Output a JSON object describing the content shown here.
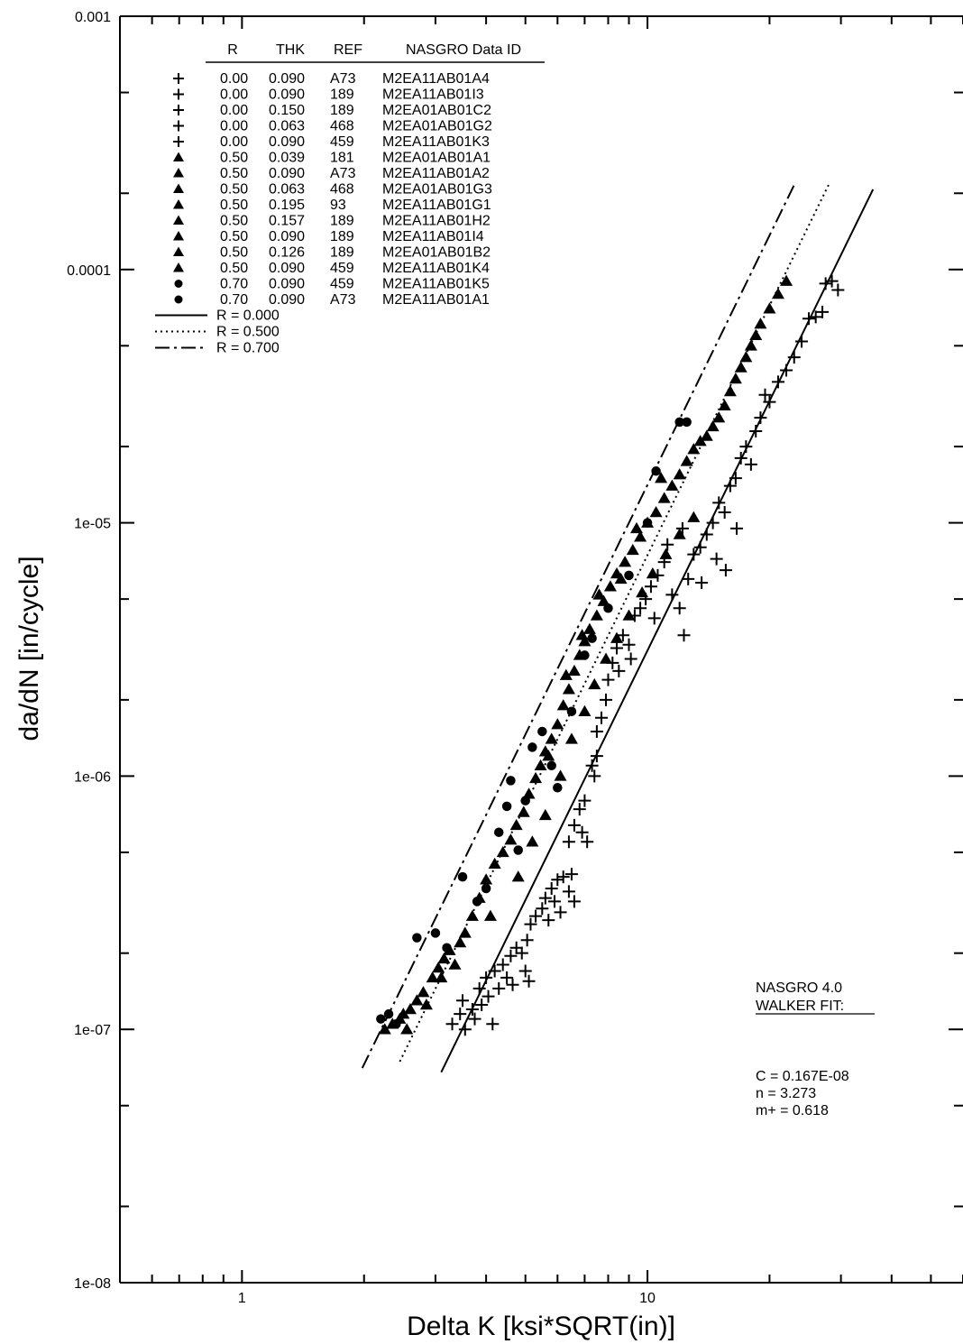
{
  "chart_data": {
    "type": "scatter",
    "xscale": "log",
    "yscale": "log",
    "xlim": [
      0.5,
      60
    ],
    "ylim": [
      1e-08,
      0.001
    ],
    "xlabel": "Delta K [ksi*SQRT(in)]",
    "ylabel": "da/dN [in/cycle]",
    "x_tick_labels": [
      {
        "value": 1,
        "label": "1"
      },
      {
        "value": 10,
        "label": "10"
      }
    ],
    "y_tick_labels": [
      {
        "value": 1e-08,
        "label": "1e-08"
      },
      {
        "value": 1e-07,
        "label": "1e-07"
      },
      {
        "value": 1e-06,
        "label": "1e-06"
      },
      {
        "value": 1e-05,
        "label": "1e-05"
      },
      {
        "value": 0.0001,
        "label": "0.0001"
      },
      {
        "value": 0.001,
        "label": "0.001"
      }
    ],
    "legend": {
      "position": "top-left",
      "headers": [
        "R",
        "THK",
        "REF",
        "NASGRO Data ID"
      ],
      "rows": [
        {
          "marker": "plus",
          "R": "0.00",
          "THK": "0.090",
          "REF": "A73",
          "id": "M2EA11AB01A4"
        },
        {
          "marker": "plus",
          "R": "0.00",
          "THK": "0.090",
          "REF": "189",
          "id": "M2EA11AB01I3"
        },
        {
          "marker": "plus",
          "R": "0.00",
          "THK": "0.150",
          "REF": "189",
          "id": "M2EA01AB01C2"
        },
        {
          "marker": "plus",
          "R": "0.00",
          "THK": "0.063",
          "REF": "468",
          "id": "M2EA01AB01G2"
        },
        {
          "marker": "plus",
          "R": "0.00",
          "THK": "0.090",
          "REF": "459",
          "id": "M2EA11AB01K3"
        },
        {
          "marker": "triangle",
          "R": "0.50",
          "THK": "0.039",
          "REF": "181",
          "id": "M2EA01AB01A1"
        },
        {
          "marker": "triangle",
          "R": "0.50",
          "THK": "0.090",
          "REF": "A73",
          "id": "M2EA11AB01A2"
        },
        {
          "marker": "triangle",
          "R": "0.50",
          "THK": "0.063",
          "REF": "468",
          "id": "M2EA01AB01G3"
        },
        {
          "marker": "triangle",
          "R": "0.50",
          "THK": "0.195",
          "REF": "93",
          "id": "M2EA11AB01G1"
        },
        {
          "marker": "triangle",
          "R": "0.50",
          "THK": "0.157",
          "REF": "189",
          "id": "M2EA11AB01H2"
        },
        {
          "marker": "triangle",
          "R": "0.50",
          "THK": "0.090",
          "REF": "189",
          "id": "M2EA11AB01I4"
        },
        {
          "marker": "triangle",
          "R": "0.50",
          "THK": "0.126",
          "REF": "189",
          "id": "M2EA01AB01B2"
        },
        {
          "marker": "triangle",
          "R": "0.50",
          "THK": "0.090",
          "REF": "459",
          "id": "M2EA11AB01K4"
        },
        {
          "marker": "circle",
          "R": "0.70",
          "THK": "0.090",
          "REF": "459",
          "id": "M2EA11AB01K5"
        },
        {
          "marker": "circle",
          "R": "0.70",
          "THK": "0.090",
          "REF": "A73",
          "id": "M2EA11AB01A1"
        }
      ],
      "fit_lines": [
        {
          "style": "solid",
          "label": "R =  0.000"
        },
        {
          "style": "dotted",
          "label": "R =  0.500"
        },
        {
          "style": "dashdot",
          "label": "R =  0.700"
        }
      ]
    },
    "annotation": {
      "title_lines": [
        "NASGRO 4.0",
        "WALKER FIT:"
      ],
      "params": [
        "C = 0.167E-08",
        "n = 3.273",
        "m+ = 0.618"
      ]
    },
    "fit_curves": [
      {
        "R": 0.0,
        "style": "solid",
        "x_range": [
          3.1,
          36
        ]
      },
      {
        "R": 0.5,
        "style": "dotted",
        "x_range": [
          2.45,
          28
        ]
      },
      {
        "R": 0.7,
        "style": "dashdot",
        "x_range": [
          1.98,
          23
        ]
      }
    ],
    "series": [
      {
        "R": "0.00",
        "marker": "plus",
        "points": [
          [
            3.3,
            1.05e-07
          ],
          [
            3.45,
            1.15e-07
          ],
          [
            3.5,
            1.3e-07
          ],
          [
            3.55,
            1e-07
          ],
          [
            3.7,
            1.2e-07
          ],
          [
            3.75,
            1.1e-07
          ],
          [
            3.85,
            1.45e-07
          ],
          [
            3.9,
            1.25e-07
          ],
          [
            4.0,
            1.6e-07
          ],
          [
            4.05,
            1.35e-07
          ],
          [
            4.15,
            1.05e-07
          ],
          [
            4.2,
            1.7e-07
          ],
          [
            4.3,
            1.45e-07
          ],
          [
            4.4,
            1.8e-07
          ],
          [
            4.5,
            1.6e-07
          ],
          [
            4.6,
            1.95e-07
          ],
          [
            4.65,
            1.5e-07
          ],
          [
            4.75,
            2.1e-07
          ],
          [
            4.9,
            2e-07
          ],
          [
            5.0,
            1.7e-07
          ],
          [
            5.1,
            1.55e-07
          ],
          [
            5.05,
            2.25e-07
          ],
          [
            5.15,
            2.6e-07
          ],
          [
            5.3,
            2.8e-07
          ],
          [
            5.5,
            3e-07
          ],
          [
            5.6,
            3.3e-07
          ],
          [
            5.8,
            3.6e-07
          ],
          [
            5.9,
            3.2e-07
          ],
          [
            6.0,
            3.9e-07
          ],
          [
            6.2,
            4e-07
          ],
          [
            6.4,
            3.5e-07
          ],
          [
            6.5,
            4.1e-07
          ],
          [
            6.6,
            3.2e-07
          ],
          [
            6.1,
            2.9e-07
          ],
          [
            5.7,
            2.7e-07
          ],
          [
            6.4,
            5.5e-07
          ],
          [
            6.6,
            6.4e-07
          ],
          [
            6.8,
            7.4e-07
          ],
          [
            6.9,
            6e-07
          ],
          [
            7.1,
            5.5e-07
          ],
          [
            7.0,
            8e-07
          ],
          [
            7.3,
            1.1e-06
          ],
          [
            7.4,
            1e-06
          ],
          [
            7.5,
            1.2e-06
          ],
          [
            7.5,
            1.5e-06
          ],
          [
            7.7,
            1.7e-06
          ],
          [
            7.9,
            2e-06
          ],
          [
            8.0,
            2.4e-06
          ],
          [
            8.2,
            2.8e-06
          ],
          [
            8.4,
            3.2e-06
          ],
          [
            8.7,
            3.6e-06
          ],
          [
            9.0,
            3.3e-06
          ],
          [
            9.3,
            4.3e-06
          ],
          [
            9.6,
            4.6e-06
          ],
          [
            9.9,
            5e-06
          ],
          [
            10.2,
            5.6e-06
          ],
          [
            10.6,
            6.2e-06
          ],
          [
            11.0,
            7e-06
          ],
          [
            11.5,
            5.2e-06
          ],
          [
            12.0,
            4.6e-06
          ],
          [
            12.3,
            3.6e-06
          ],
          [
            12.6,
            6e-06
          ],
          [
            13.0,
            7.5e-06
          ],
          [
            13.5,
            8e-06
          ],
          [
            14.0,
            9e-06
          ],
          [
            14.5,
            1e-05
          ],
          [
            15.0,
            1.2e-05
          ],
          [
            15.5,
            1.1e-05
          ],
          [
            16.0,
            1.4e-05
          ],
          [
            16.5,
            1.5e-05
          ],
          [
            17.0,
            1.8e-05
          ],
          [
            17.5,
            2e-05
          ],
          [
            18.0,
            1.7e-05
          ],
          [
            18.5,
            2.3e-05
          ],
          [
            19.0,
            2.6e-05
          ],
          [
            19.5,
            3.2e-05
          ],
          [
            20.0,
            3e-05
          ],
          [
            21.0,
            3.6e-05
          ],
          [
            22.0,
            4e-05
          ],
          [
            23.0,
            4.5e-05
          ],
          [
            24.0,
            5.2e-05
          ],
          [
            25.0,
            6.4e-05
          ],
          [
            26.0,
            6.5e-05
          ],
          [
            27.0,
            6.8e-05
          ],
          [
            27.5,
            8.8e-05
          ],
          [
            28.5,
            9e-05
          ],
          [
            29.5,
            8.3e-05
          ],
          [
            12.2,
            9.5e-06
          ],
          [
            11.2,
            8.2e-06
          ],
          [
            14.8,
            7.2e-06
          ],
          [
            15.6,
            6.5e-06
          ],
          [
            16.6,
            9.5e-06
          ],
          [
            13.6,
            5.8e-06
          ],
          [
            10.4,
            4.2e-06
          ],
          [
            9.1,
            2.9e-06
          ],
          [
            8.5,
            2.6e-06
          ]
        ]
      },
      {
        "R": "0.50",
        "marker": "triangle",
        "points": [
          [
            2.25,
            1e-07
          ],
          [
            2.35,
            1.05e-07
          ],
          [
            2.45,
            1.1e-07
          ],
          [
            2.5,
            1.15e-07
          ],
          [
            2.55,
            1e-07
          ],
          [
            2.6,
            1.2e-07
          ],
          [
            2.7,
            1.3e-07
          ],
          [
            2.8,
            1.4e-07
          ],
          [
            2.85,
            1.25e-07
          ],
          [
            2.95,
            1.6e-07
          ],
          [
            3.05,
            1.75e-07
          ],
          [
            3.15,
            1.9e-07
          ],
          [
            3.25,
            2.05e-07
          ],
          [
            3.35,
            1.8e-07
          ],
          [
            3.45,
            2.2e-07
          ],
          [
            3.55,
            2.4e-07
          ],
          [
            3.7,
            2.8e-07
          ],
          [
            3.85,
            3.3e-07
          ],
          [
            4.0,
            3.9e-07
          ],
          [
            4.2,
            4.5e-07
          ],
          [
            4.4,
            5e-07
          ],
          [
            4.6,
            5.6e-07
          ],
          [
            4.75,
            6.4e-07
          ],
          [
            4.95,
            7.2e-07
          ],
          [
            5.1,
            8.5e-07
          ],
          [
            5.3,
            9.8e-07
          ],
          [
            5.45,
            1.1e-06
          ],
          [
            5.6,
            1.25e-06
          ],
          [
            5.8,
            1.4e-06
          ],
          [
            6.0,
            1.6e-06
          ],
          [
            6.2,
            1.9e-06
          ],
          [
            6.4,
            2.2e-06
          ],
          [
            6.6,
            2.6e-06
          ],
          [
            6.8,
            3e-06
          ],
          [
            7.0,
            3.4e-06
          ],
          [
            7.2,
            3.8e-06
          ],
          [
            7.5,
            4.3e-06
          ],
          [
            7.8,
            4.9e-06
          ],
          [
            8.1,
            5.6e-06
          ],
          [
            8.4,
            6.3e-06
          ],
          [
            8.8,
            7e-06
          ],
          [
            9.2,
            7.8e-06
          ],
          [
            9.6,
            8.8e-06
          ],
          [
            10.0,
            1e-05
          ],
          [
            10.5,
            1.1e-05
          ],
          [
            11.0,
            1.25e-05
          ],
          [
            11.5,
            1.4e-05
          ],
          [
            12.0,
            1.55e-05
          ],
          [
            12.5,
            1.75e-05
          ],
          [
            13.0,
            1.95e-05
          ],
          [
            13.5,
            2.1e-05
          ],
          [
            14.0,
            2.2e-05
          ],
          [
            14.5,
            2.4e-05
          ],
          [
            15.0,
            2.6e-05
          ],
          [
            15.5,
            2.9e-05
          ],
          [
            16.0,
            3.3e-05
          ],
          [
            16.5,
            3.7e-05
          ],
          [
            17.0,
            4.1e-05
          ],
          [
            17.5,
            4.5e-05
          ],
          [
            18.0,
            5e-05
          ],
          [
            18.5,
            5.5e-05
          ],
          [
            19.0,
            6.1e-05
          ],
          [
            20.0,
            7e-05
          ],
          [
            21.0,
            8e-05
          ],
          [
            22.0,
            9e-05
          ],
          [
            3.1,
            1.6e-07
          ],
          [
            4.1,
            2.8e-07
          ],
          [
            4.8,
            4e-07
          ],
          [
            5.2,
            5.5e-07
          ],
          [
            5.6,
            7e-07
          ],
          [
            6.1,
            1e-06
          ],
          [
            6.5,
            1.4e-06
          ],
          [
            7.0,
            1.8e-06
          ],
          [
            7.4,
            2.3e-06
          ],
          [
            7.9,
            2.9e-06
          ],
          [
            8.4,
            3.5e-06
          ],
          [
            9.0,
            4.3e-06
          ],
          [
            9.7,
            5.3e-06
          ],
          [
            10.3,
            6.3e-06
          ],
          [
            11.1,
            7.5e-06
          ],
          [
            12.0,
            9e-06
          ],
          [
            13.0,
            1.05e-05
          ],
          [
            5.7,
            1.2e-06
          ],
          [
            6.3,
            2.5e-06
          ],
          [
            6.9,
            3.6e-06
          ],
          [
            7.6,
            5.2e-06
          ],
          [
            8.6,
            6e-06
          ],
          [
            9.4,
            9.5e-06
          ],
          [
            10.8,
            1.5e-05
          ]
        ]
      },
      {
        "R": "0.70",
        "marker": "circle",
        "points": [
          [
            2.2,
            1.1e-07
          ],
          [
            2.3,
            1.15e-07
          ],
          [
            2.4,
            1.05e-07
          ],
          [
            2.7,
            2.3e-07
          ],
          [
            3.0,
            2.4e-07
          ],
          [
            3.2,
            2.1e-07
          ],
          [
            3.5,
            4e-07
          ],
          [
            3.8,
            3.2e-07
          ],
          [
            4.0,
            3.6e-07
          ],
          [
            4.3,
            6e-07
          ],
          [
            4.5,
            7.6e-07
          ],
          [
            4.6,
            9.6e-07
          ],
          [
            4.8,
            5.1e-07
          ],
          [
            5.0,
            8e-07
          ],
          [
            5.2,
            1.3e-06
          ],
          [
            5.5,
            1.5e-06
          ],
          [
            5.8,
            1.1e-06
          ],
          [
            6.0,
            9e-07
          ],
          [
            6.5,
            1.8e-06
          ],
          [
            7.0,
            3e-06
          ],
          [
            7.3,
            3.5e-06
          ],
          [
            8.0,
            4.6e-06
          ],
          [
            9.0,
            6.2e-06
          ],
          [
            10.0,
            1e-05
          ],
          [
            10.5,
            1.6e-05
          ],
          [
            12.0,
            2.5e-05
          ],
          [
            12.5,
            2.5e-05
          ]
        ]
      }
    ]
  }
}
